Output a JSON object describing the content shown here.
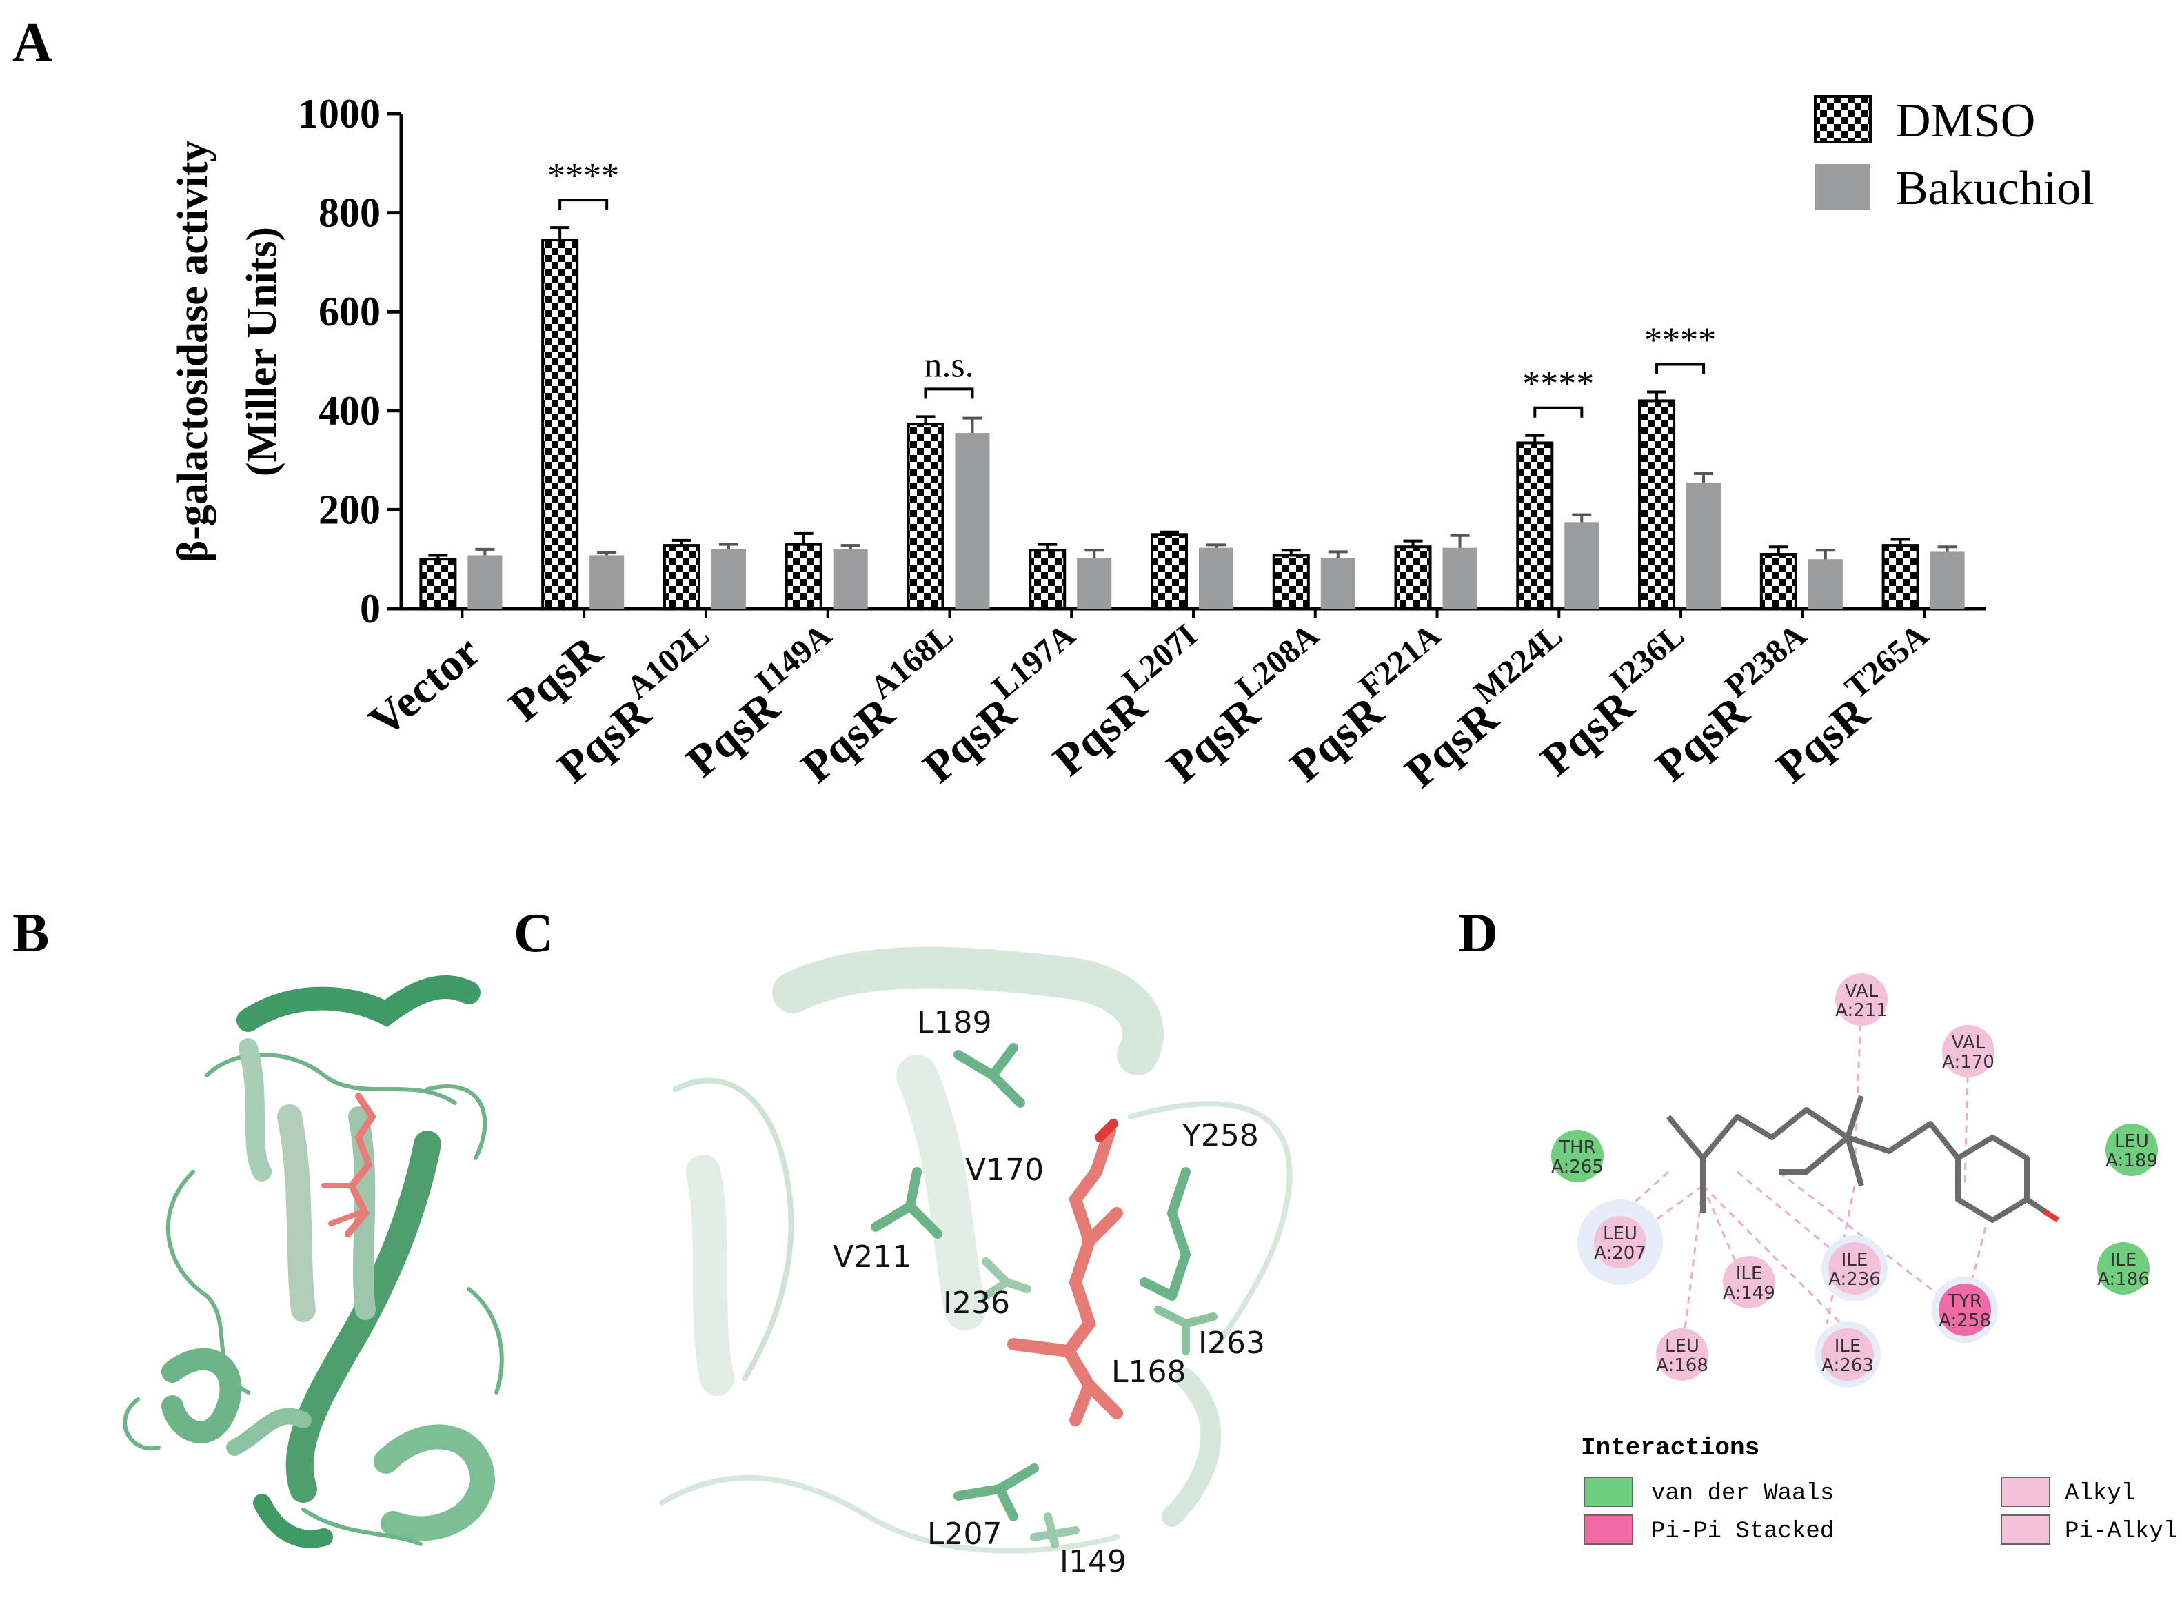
{
  "panels": {
    "A": "A",
    "B": "B",
    "C": "C",
    "D": "D"
  },
  "chart_data": {
    "type": "bar",
    "ylabel_line1": "β-galactosidase activity",
    "ylabel_line2": "(Miller Units)",
    "ylim": [
      0,
      1000
    ],
    "yticks": [
      "0",
      "200",
      "400",
      "600",
      "800",
      "1000"
    ],
    "categories": [
      {
        "base": "Vector",
        "sup": ""
      },
      {
        "base": "PqsR",
        "sup": ""
      },
      {
        "base": "PqsR",
        "sup": "A102L"
      },
      {
        "base": "PqsR",
        "sup": "I149A"
      },
      {
        "base": "PqsR",
        "sup": "A168L"
      },
      {
        "base": "PqsR",
        "sup": "L197A"
      },
      {
        "base": "PqsR",
        "sup": "L207I"
      },
      {
        "base": "PqsR",
        "sup": "L208A"
      },
      {
        "base": "PqsR",
        "sup": "F221A"
      },
      {
        "base": "PqsR",
        "sup": "M224L"
      },
      {
        "base": "PqsR",
        "sup": "I236L"
      },
      {
        "base": "PqsR",
        "sup": "P238A"
      },
      {
        "base": "PqsR",
        "sup": "T265A"
      }
    ],
    "series": [
      {
        "name": "DMSO",
        "color": "#000000",
        "pattern": "checker",
        "values": [
          100,
          745,
          128,
          130,
          373,
          118,
          150,
          108,
          125,
          335,
          420,
          110,
          128
        ],
        "errors": [
          8,
          25,
          10,
          22,
          15,
          12,
          5,
          10,
          12,
          15,
          18,
          15,
          12
        ]
      },
      {
        "name": "Bakuchiol",
        "color": "#9b9c9e",
        "pattern": "solid",
        "values": [
          108,
          108,
          120,
          120,
          355,
          103,
          123,
          103,
          123,
          175,
          255,
          100,
          115
        ],
        "errors": [
          12,
          6,
          10,
          8,
          30,
          15,
          6,
          12,
          25,
          15,
          18,
          18,
          10
        ]
      }
    ],
    "significance": [
      {
        "category": 1,
        "label": "****"
      },
      {
        "category": 4,
        "label": "n.s."
      },
      {
        "category": 9,
        "label": "****"
      },
      {
        "category": 10,
        "label": "****"
      }
    ],
    "legend_position": "top-right",
    "grid": false
  },
  "panel_c_labels": [
    "L189",
    "V170",
    "Y258",
    "V211",
    "I236",
    "I263",
    "L168",
    "L207",
    "I149"
  ],
  "panel_d": {
    "residues": [
      {
        "name": "VAL",
        "id": "A:211",
        "type": "alkyl"
      },
      {
        "name": "VAL",
        "id": "A:170",
        "type": "alkyl"
      },
      {
        "name": "THR",
        "id": "A:265",
        "type": "vdw"
      },
      {
        "name": "LEU",
        "id": "A:189",
        "type": "vdw"
      },
      {
        "name": "LEU",
        "id": "A:207",
        "type": "alkyl"
      },
      {
        "name": "ILE",
        "id": "A:149",
        "type": "alkyl"
      },
      {
        "name": "ILE",
        "id": "A:236",
        "type": "alkyl"
      },
      {
        "name": "TYR",
        "id": "A:258",
        "type": "pipi"
      },
      {
        "name": "ILE",
        "id": "A:186",
        "type": "vdw"
      },
      {
        "name": "LEU",
        "id": "A:168",
        "type": "alkyl"
      },
      {
        "name": "ILE",
        "id": "A:263",
        "type": "alkyl"
      }
    ],
    "legend_title": "Interactions",
    "legend": [
      {
        "label": "van der Waals",
        "color": "#6fcf7f"
      },
      {
        "label": "Pi-Pi Stacked",
        "color": "#f06aa6"
      },
      {
        "label": "Alkyl",
        "color": "#f4c1db"
      },
      {
        "label": "Pi-Alkyl",
        "color": "#f4c1db"
      }
    ]
  }
}
